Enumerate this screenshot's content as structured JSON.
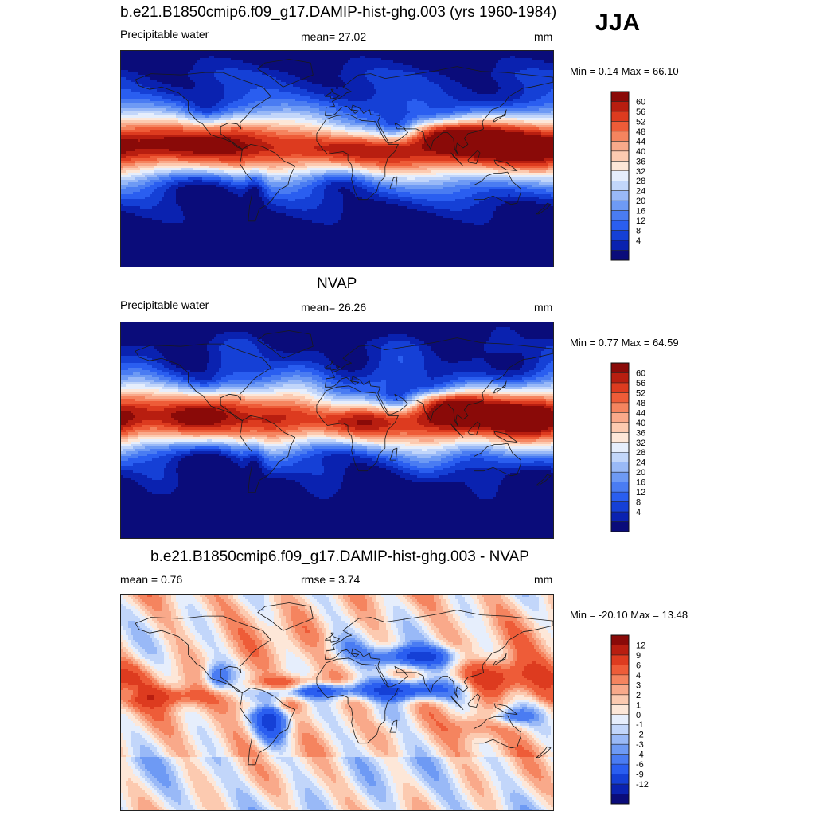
{
  "season_label": "JJA",
  "colors": {
    "abs_scale": [
      "#0a0c7a",
      "#0a22b0",
      "#1540d6",
      "#2a5ef0",
      "#4a7cf2",
      "#6e9af4",
      "#99b9f7",
      "#c2d6fa",
      "#e6eefc",
      "#fde7d8",
      "#fccab0",
      "#f9a98a",
      "#f5845f",
      "#ee5c38",
      "#dd3b1f",
      "#b81e10",
      "#8a0a08"
    ],
    "diff_scale": [
      "#0a0c7a",
      "#0a22b0",
      "#1540d6",
      "#2a5ef0",
      "#4a7cf2",
      "#6e9af4",
      "#99b9f7",
      "#c2d6fa",
      "#e6eefc",
      "#fde7d8",
      "#fccab0",
      "#f9a98a",
      "#f5845f",
      "#ee5c38",
      "#dd3b1f",
      "#b81e10",
      "#8a0a08"
    ],
    "coastline": "#1a1a1a"
  },
  "panels": [
    {
      "title": "b.e21.B1850cmip6.f09_g17.DAMIP-hist-ghg.003 (yrs 1960-1984)",
      "left_label": "Precipitable water",
      "center_label": "mean=  27.02",
      "right_label": "mm",
      "minmax": "Min =   0.14 Max =  66.10",
      "colorbar_ticks": [
        "60",
        "56",
        "52",
        "48",
        "44",
        "40",
        "36",
        "32",
        "28",
        "24",
        "20",
        "16",
        "12",
        "8",
        "4"
      ],
      "kind": "model"
    },
    {
      "title": "NVAP",
      "left_label": "Precipitable water",
      "center_label": "mean=  26.26",
      "right_label": "mm",
      "minmax": "Min =   0.77 Max =  64.59",
      "colorbar_ticks": [
        "60",
        "56",
        "52",
        "48",
        "44",
        "40",
        "36",
        "32",
        "28",
        "24",
        "20",
        "16",
        "12",
        "8",
        "4"
      ],
      "kind": "obs"
    },
    {
      "title": "b.e21.B1850cmip6.f09_g17.DAMIP-hist-ghg.003 - NVAP",
      "left_label": "mean =   0.76",
      "center_label": "rmse =   3.74",
      "right_label": "mm",
      "minmax": "Min = -20.10 Max =  13.48",
      "colorbar_ticks": [
        "12",
        "9",
        "6",
        "4",
        "3",
        "2",
        "1",
        "0",
        "-1",
        "-2",
        "-3",
        "-4",
        "-6",
        "-9",
        "-12"
      ],
      "kind": "diff"
    }
  ]
}
